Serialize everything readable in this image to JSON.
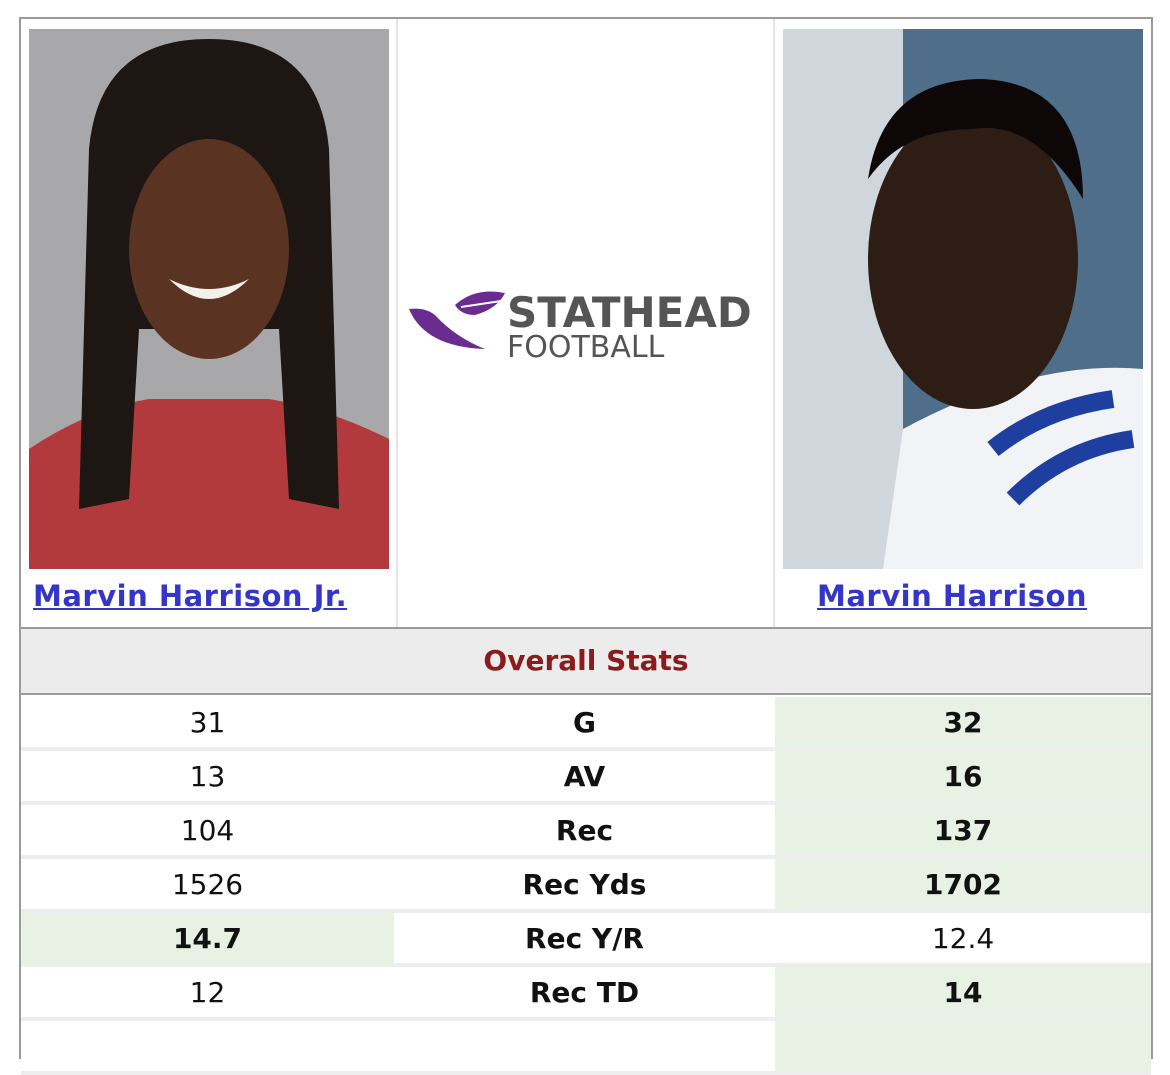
{
  "players": {
    "left": {
      "name": "Marvin Harrison Jr."
    },
    "right": {
      "name": "Marvin Harrison"
    }
  },
  "logo": {
    "line1": "STATHEAD",
    "line2": "FOOTBALL"
  },
  "table": {
    "section": "Overall Stats",
    "rows": [
      {
        "left": "31",
        "label": "G",
        "right": "32",
        "better": "right"
      },
      {
        "left": "13",
        "label": "AV",
        "right": "16",
        "better": "right"
      },
      {
        "left": "104",
        "label": "Rec",
        "right": "137",
        "better": "right"
      },
      {
        "left": "1526",
        "label": "Rec Yds",
        "right": "1702",
        "better": "right"
      },
      {
        "left": "14.7",
        "label": "Rec Y/R",
        "right": "12.4",
        "better": "left"
      },
      {
        "left": "12",
        "label": "Rec TD",
        "right": "14",
        "better": "right"
      }
    ]
  }
}
